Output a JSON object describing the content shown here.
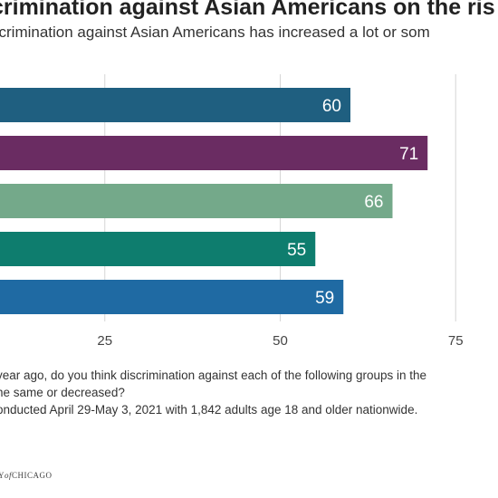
{
  "header": {
    "title": "crimination against Asian Americans on the ris",
    "subtitle": "scrimination against Asian Americans has increased a lot or som"
  },
  "chart_data": {
    "type": "bar",
    "orientation": "horizontal",
    "values": [
      60,
      71,
      66,
      55,
      59
    ],
    "colors": [
      "#1f5f80",
      "#6a2c62",
      "#74a98a",
      "#0e7d6e",
      "#1f6aa3"
    ],
    "xticks": [
      25,
      50,
      75
    ],
    "grid": true
  },
  "notes": {
    "line1": "year ago, do you think discrimination against each of the following groups in the",
    "line2": "ne same or decreased?",
    "line3": "onducted April 29-May 3, 2021 with 1,842 adults age 18 and older nationwide."
  },
  "logo": {
    "prefix": "Y",
    "of": "of",
    "name": "CHICAGO"
  }
}
